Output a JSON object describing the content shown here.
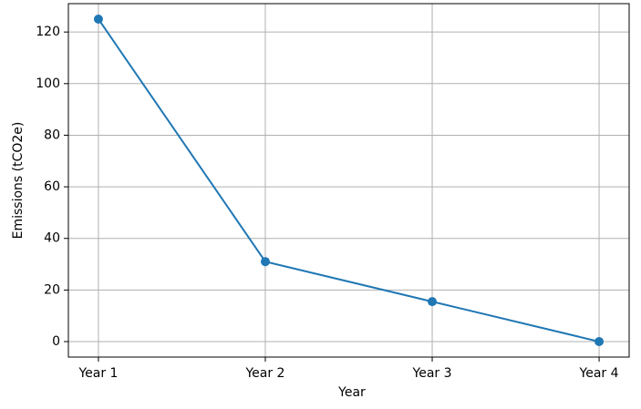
{
  "chart_data": {
    "type": "line",
    "x_label": "Year",
    "y_label": "Emissions (tCO2e)",
    "categories": [
      "Year 1",
      "Year 2",
      "Year 3",
      "Year 4"
    ],
    "series": [
      {
        "color": "#1f77b4",
        "values": [
          125,
          31,
          15.5,
          0
        ]
      }
    ],
    "ylim": [
      -6,
      131
    ],
    "yticks": [
      0,
      20,
      40,
      60,
      80,
      100,
      120
    ],
    "grid": true,
    "markers": true
  }
}
